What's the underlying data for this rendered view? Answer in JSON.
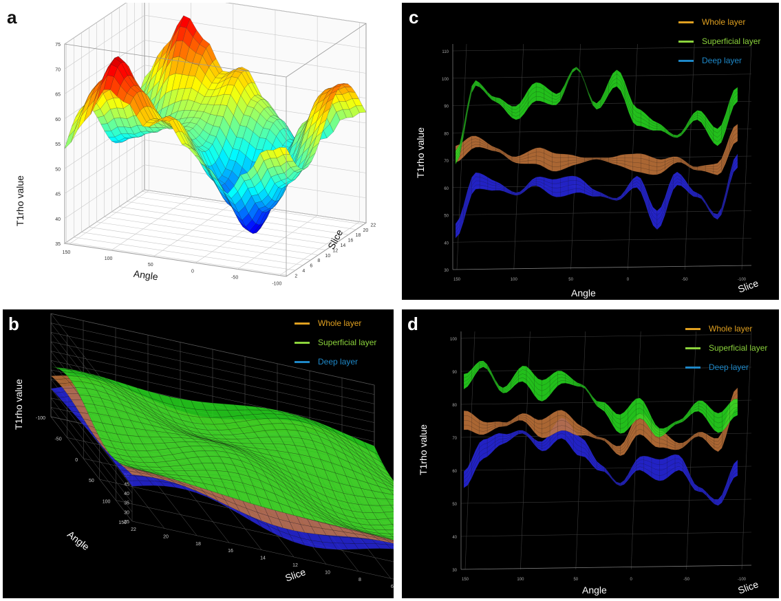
{
  "figure": {
    "legend_labels": [
      "Whole layer",
      "Superficial layer",
      "Deep layer"
    ]
  },
  "colors": {
    "whole": "#e0a020",
    "superficial": "#8cd43c",
    "deep": "#1e88c8",
    "whole_surface": "#c8783c",
    "superficial_surface": "#28e020",
    "deep_surface": "#2828e6"
  },
  "chart_data": [
    {
      "panel": "a",
      "type": "surface",
      "label": "a",
      "colormap": "jet",
      "xlabel": "Angle",
      "ylabel": "Slice",
      "zlabel": "T1rho value",
      "x_ticks": [
        "150",
        "100",
        "50",
        "0",
        "-50",
        "-100"
      ],
      "y_ticks": [
        "2",
        "4",
        "6",
        "8",
        "10",
        "12",
        "14",
        "16",
        "18",
        "20",
        "22"
      ],
      "z_ticks": [
        "35",
        "40",
        "45",
        "50",
        "55",
        "60",
        "65",
        "70",
        "75"
      ],
      "zlim": [
        35,
        75
      ],
      "grid": true,
      "profile_angles": [
        150,
        125,
        100,
        75,
        50,
        25,
        0,
        -25,
        -50,
        -75,
        -100,
        -125
      ],
      "ridge_values": [
        60,
        66,
        72,
        67,
        61,
        63,
        58,
        55,
        51,
        57,
        64,
        66
      ],
      "trough_values": [
        48,
        50,
        52,
        54,
        55,
        52,
        46,
        42,
        38,
        44,
        50,
        54
      ]
    },
    {
      "panel": "b",
      "type": "surface",
      "label": "b",
      "xlabel": "Slice",
      "ylabel": "Angle",
      "zlabel": "T1rho value",
      "x_ticks": [
        "22",
        "20",
        "18",
        "16",
        "14",
        "12",
        "10",
        "8",
        "6",
        "4",
        "2"
      ],
      "y_ticks": [
        "-100",
        "-50",
        "0",
        "50",
        "100",
        "150"
      ],
      "z_ticks": [
        "25",
        "30",
        "35",
        "40",
        "45",
        "50",
        "55",
        "60",
        "65",
        "70",
        "75",
        "80"
      ],
      "zlim": [
        25,
        80
      ],
      "legend": "top-right",
      "grid": true,
      "series": [
        {
          "name": "Whole layer",
          "key": "whole"
        },
        {
          "name": "Superficial layer",
          "key": "superficial"
        },
        {
          "name": "Deep layer",
          "key": "deep"
        }
      ]
    },
    {
      "panel": "c",
      "type": "surface",
      "label": "c",
      "xlabel": "Angle",
      "ylabel": "Slice",
      "zlabel": "T1rho value",
      "x_ticks": [
        "150",
        "100",
        "50",
        "0",
        "-50",
        "-100"
      ],
      "z_ticks": [
        "30",
        "40",
        "50",
        "60",
        "70",
        "80",
        "90",
        "100",
        "110"
      ],
      "zlim": [
        30,
        110
      ],
      "legend": "top-right",
      "grid": true,
      "angles": [
        150,
        130,
        110,
        90,
        70,
        50,
        30,
        10,
        -10,
        -30,
        -50,
        -70,
        -90,
        -110,
        -130
      ],
      "series": [
        {
          "name": "Whole layer",
          "key": "whole",
          "values": [
            72,
            76,
            74,
            71,
            72,
            69,
            70,
            71,
            70,
            69,
            68,
            71,
            67,
            66,
            80
          ]
        },
        {
          "name": "Superficial layer",
          "key": "superficial",
          "values": [
            70,
            98,
            93,
            88,
            95,
            92,
            104,
            90,
            100,
            86,
            83,
            79,
            86,
            78,
            95
          ]
        },
        {
          "name": "Deep layer",
          "key": "deep",
          "values": [
            45,
            62,
            60,
            58,
            63,
            60,
            61,
            58,
            56,
            62,
            48,
            64,
            58,
            49,
            69
          ]
        }
      ]
    },
    {
      "panel": "d",
      "type": "surface",
      "label": "d",
      "xlabel": "Angle",
      "ylabel": "Slice",
      "zlabel": "T1rho value",
      "x_ticks": [
        "150",
        "100",
        "50",
        "0",
        "-50",
        "-100"
      ],
      "z_ticks": [
        "30",
        "40",
        "50",
        "60",
        "70",
        "80",
        "90",
        "100"
      ],
      "zlim": [
        30,
        100
      ],
      "legend": "top-right",
      "grid": true,
      "angles": [
        150,
        130,
        110,
        90,
        70,
        50,
        30,
        10,
        -10,
        -30,
        -50,
        -70,
        -90,
        -110,
        -130
      ],
      "series": [
        {
          "name": "Whole layer",
          "key": "whole",
          "values": [
            75,
            72,
            74,
            77,
            73,
            75,
            72,
            70,
            66,
            74,
            70,
            68,
            71,
            67,
            82
          ]
        },
        {
          "name": "Superficial layer",
          "key": "superficial",
          "values": [
            86,
            92,
            85,
            90,
            84,
            88,
            86,
            80,
            74,
            79,
            72,
            75,
            79,
            74,
            80
          ]
        },
        {
          "name": "Deep layer",
          "key": "deep",
          "values": [
            58,
            66,
            69,
            72,
            68,
            73,
            67,
            61,
            56,
            62,
            60,
            63,
            55,
            50,
            60
          ]
        }
      ]
    }
  ]
}
